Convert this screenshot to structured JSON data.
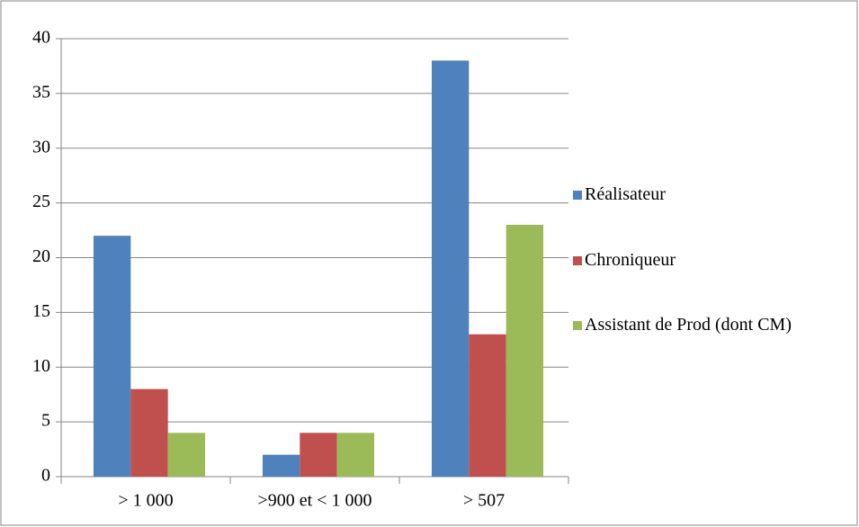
{
  "chart_data": {
    "type": "bar",
    "categories": [
      "> 1 000",
      ">900 et < 1 000",
      "> 507"
    ],
    "series": [
      {
        "name": "Réalisateur",
        "color": "#4f81bd",
        "values": [
          22,
          2,
          38
        ]
      },
      {
        "name": "Chroniqueur",
        "color": "#c0504d",
        "values": [
          8,
          4,
          13
        ]
      },
      {
        "name": "Assistant de Prod (dont CM)",
        "color": "#9bbb59",
        "values": [
          4,
          4,
          23
        ]
      }
    ],
    "ylim": [
      0,
      40
    ],
    "yticks": [
      0,
      5,
      10,
      15,
      20,
      25,
      30,
      35,
      40
    ],
    "grid": true,
    "legend": "right"
  }
}
